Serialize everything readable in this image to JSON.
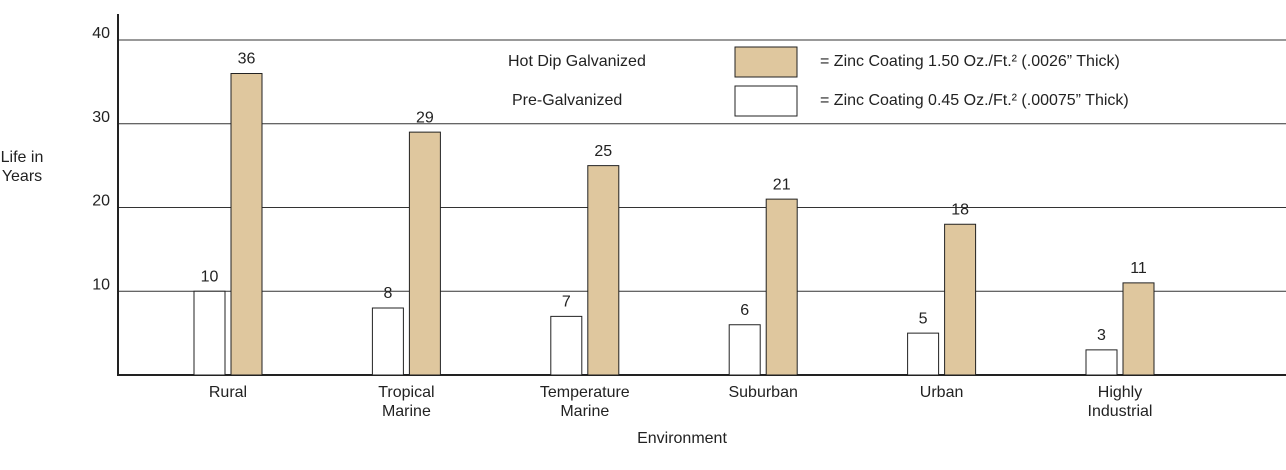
{
  "chart_data": {
    "type": "bar",
    "y_label": "Life in Years",
    "x_label": "Environment",
    "categories": [
      "Rural",
      "Tropical Marine",
      "Temperature Marine",
      "Suburban",
      "Urban",
      "Highly Industrial"
    ],
    "series": [
      {
        "name": "Pre-Galvanized",
        "description": "= Zinc Coating 0.45 Oz./Ft.² (.00075” Thick)",
        "color": "#ffffff",
        "values": [
          10,
          8,
          7,
          6,
          5,
          3
        ]
      },
      {
        "name": "Hot Dip Galvanized",
        "description": "= Zinc Coating 1.50 Oz./Ft.² (.0026” Thick)",
        "color": "#dfc79e",
        "values": [
          36,
          29,
          25,
          21,
          18,
          11
        ]
      }
    ],
    "ylim": [
      0,
      40
    ],
    "yticks": [
      10,
      20,
      30,
      40
    ],
    "grid": true
  }
}
